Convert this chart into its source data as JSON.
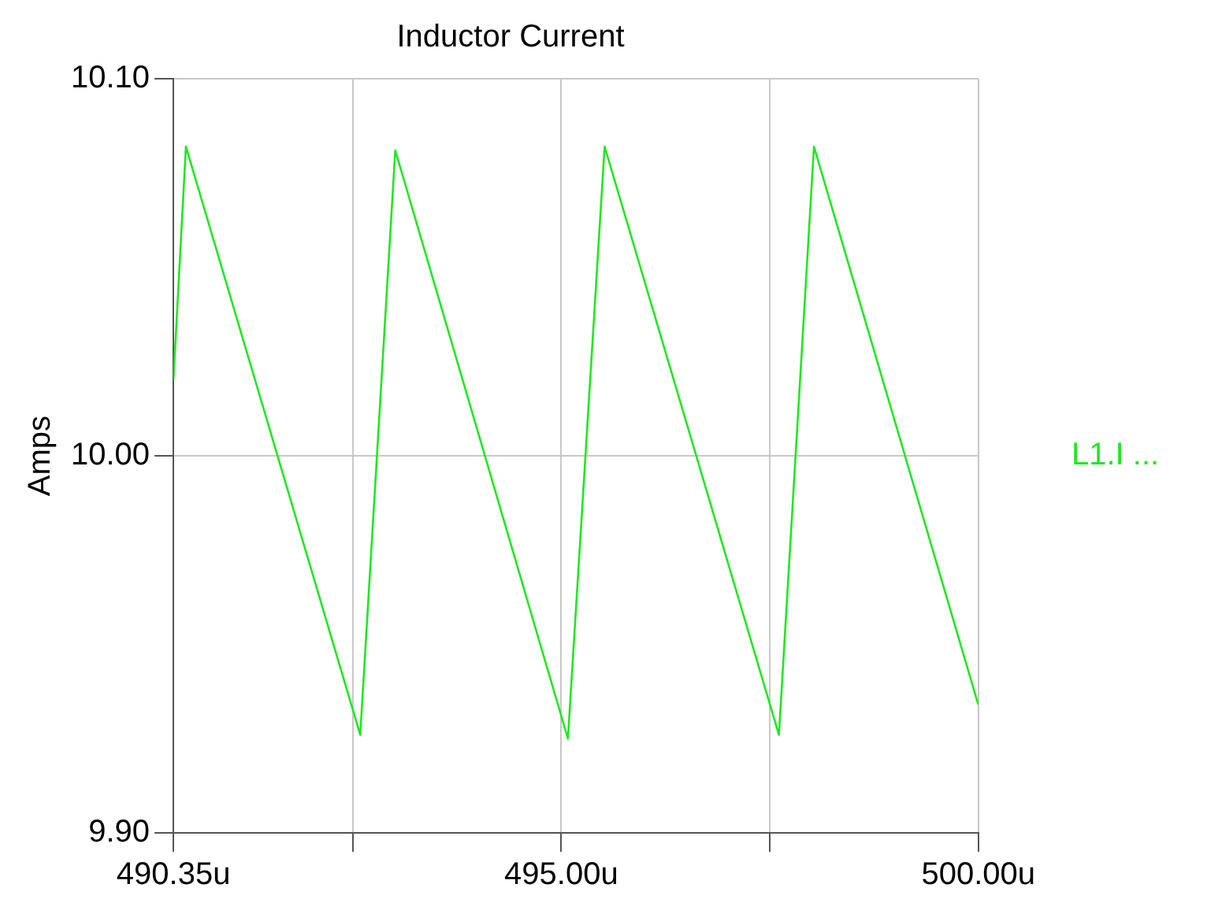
{
  "chart_data": {
    "type": "line",
    "title": "Inductor Current",
    "ylabel": "Amps",
    "x": [
      490.35,
      490.5,
      492.59,
      493.01,
      495.08,
      495.52,
      497.61,
      498.03,
      500.0
    ],
    "series": [
      {
        "name": "L1.I ...",
        "color": "#22e622",
        "values": [
          10.02,
          10.082,
          9.926,
          10.081,
          9.925,
          10.082,
          9.926,
          10.082,
          9.934
        ]
      }
    ],
    "xlim": [
      490.35,
      500.0
    ],
    "xticks": [
      {
        "value": 490.35,
        "label": "490.35u"
      },
      {
        "value": 492.5,
        "label": null
      },
      {
        "value": 495.0,
        "label": "495.00u"
      },
      {
        "value": 497.5,
        "label": null
      },
      {
        "value": 500.0,
        "label": "500.00u"
      }
    ],
    "ylim": [
      9.9,
      10.1
    ],
    "yticks": [
      {
        "value": 9.9,
        "label": "9.90"
      },
      {
        "value": 10.0,
        "label": "10.00"
      },
      {
        "value": 10.1,
        "label": "10.10"
      }
    ],
    "grid": true,
    "legend": "right",
    "marker": "none",
    "line_style": "solid"
  }
}
